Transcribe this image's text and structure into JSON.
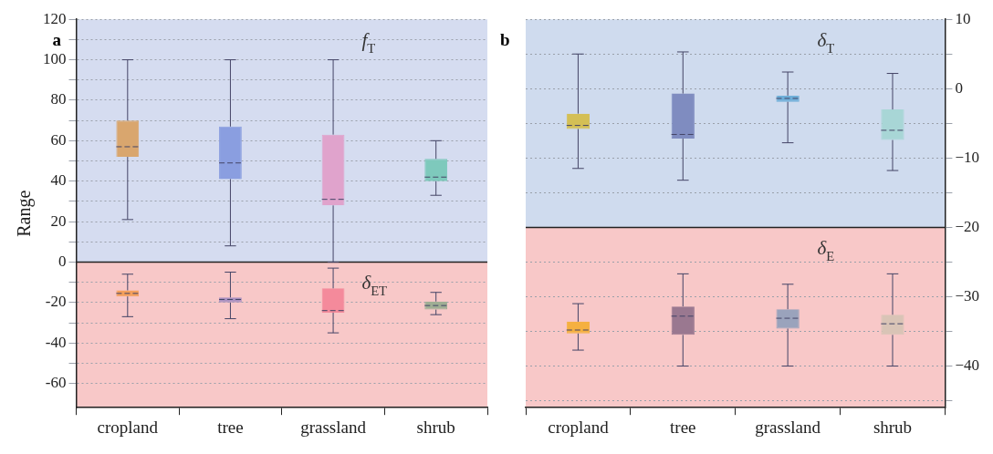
{
  "chart_data": [
    {
      "type": "box",
      "title": "a",
      "ylabel": "Range",
      "categories": [
        "cropland",
        "tree",
        "grassland",
        "shrub"
      ],
      "ylim": [
        -72,
        120
      ],
      "yticks": [
        -60,
        {
          "value": -50,
          "label": null
        },
        -40,
        {
          "value": -30,
          "label": null
        },
        -20,
        {
          "value": -10,
          "label": null
        },
        0,
        {
          "value": 10,
          "label": null
        },
        20,
        {
          "value": 30,
          "label": null
        },
        40,
        {
          "value": 50,
          "label": null
        },
        60,
        {
          "value": 70,
          "label": null
        },
        80,
        {
          "value": 90,
          "label": null
        },
        100,
        {
          "value": 110,
          "label": null
        },
        120
      ],
      "grid": "y",
      "bands": [
        {
          "axis": "y",
          "from": 0,
          "to": 120,
          "label": null,
          "color": "#d5dcf0"
        },
        {
          "axis": "y",
          "from": -72,
          "to": 0,
          "label": null,
          "color": "#f8c8c8"
        }
      ],
      "ref_lines": [
        {
          "axis": "y",
          "value": 0,
          "label": null,
          "color": "#222222"
        }
      ],
      "annotations": [
        "f$_{T}$",
        "δ$_{ET}$"
      ],
      "series": [
        {
          "colors": [
            "#d9a66e",
            "#8a9ee0",
            "#e0a3cc",
            "#7ec9bc"
          ],
          "boxes": [
            {
              "low": 21,
              "q1": 52,
              "median": 57,
              "q3": 70,
              "high": 100
            },
            {
              "low": 8,
              "q1": 41,
              "median": 49,
              "q3": 67,
              "high": 100
            },
            {
              "low": 0,
              "q1": 28,
              "median": 31,
              "q3": 63,
              "high": 100
            },
            {
              "low": 33,
              "q1": 40,
              "median": 42,
              "q3": 51,
              "high": 60
            }
          ]
        },
        {
          "colors": [
            "#f4a05c",
            "#a98fc0",
            "#f48a9b",
            "#9fae94"
          ],
          "boxes": [
            {
              "low": -27,
              "q1": -17,
              "median": -15.5,
              "q3": -14,
              "high": -6
            },
            {
              "low": -28,
              "q1": -20,
              "median": -18.5,
              "q3": -17.5,
              "high": -5
            },
            {
              "low": -35,
              "q1": -25,
              "median": -24,
              "q3": -13,
              "high": -3
            },
            {
              "low": -26,
              "q1": -23.5,
              "median": -21.5,
              "q3": -19.5,
              "high": -15
            }
          ]
        }
      ]
    },
    {
      "type": "box",
      "title": "b",
      "categories": [
        "cropland",
        "tree",
        "grassland",
        "shrub"
      ],
      "y2lim": [
        -46,
        10
      ],
      "y2ticks": [
        {
          "value": -45,
          "label": null
        },
        {
          "value": -40,
          "label": "−40"
        },
        {
          "value": -35,
          "label": null
        },
        {
          "value": -30,
          "label": "−30"
        },
        {
          "value": -25,
          "label": null
        },
        {
          "value": -20,
          "label": "−20"
        },
        {
          "value": -15,
          "label": null
        },
        {
          "value": -10,
          "label": "−10"
        },
        {
          "value": -5,
          "label": null
        },
        0,
        {
          "value": 5,
          "label": null
        },
        10
      ],
      "grid": "y",
      "bands": [
        {
          "axis": "y2",
          "from": -20,
          "to": 10,
          "label": null,
          "color": "#cfdbee"
        },
        {
          "axis": "y2",
          "from": -46,
          "to": -20,
          "label": null,
          "color": "#f8c8c8"
        }
      ],
      "ref_lines": [
        {
          "axis": "y2",
          "value": -20,
          "label": null,
          "color": "#222222"
        }
      ],
      "annotations": [
        "δ$_{T}$",
        "δ$_{E}$"
      ],
      "series": [
        {
          "axis": "y2",
          "colors": [
            "#d4bf55",
            "#7f8cc0",
            "#6eaed8",
            "#a8d6d6"
          ],
          "boxes": [
            {
              "low": -11.5,
              "q1": -5.8,
              "median": -5.3,
              "q3": -3.6,
              "high": 5
            },
            {
              "low": -13.2,
              "q1": -7.2,
              "median": -6.6,
              "q3": -0.7,
              "high": 5.3
            },
            {
              "low": -7.8,
              "q1": -1.9,
              "median": -1.4,
              "q3": -1,
              "high": 2.4
            },
            {
              "low": -11.8,
              "q1": -7.4,
              "median": -6,
              "q3": -3,
              "high": 2.2
            }
          ]
        },
        {
          "axis": "y2",
          "colors": [
            "#f5b040",
            "#9a7890",
            "#9aa3bc",
            "#d9c4b6"
          ],
          "boxes": [
            {
              "low": -37.7,
              "q1": -35.3,
              "median": -34.8,
              "q3": -33.6,
              "high": -31
            },
            {
              "low": -40,
              "q1": -35.5,
              "median": -32.8,
              "q3": -31.4,
              "high": -26.7
            },
            {
              "low": -40,
              "q1": -34.6,
              "median": -33.1,
              "q3": -31.8,
              "high": -28.2
            },
            {
              "low": -40,
              "q1": -35.5,
              "median": -33.9,
              "q3": -32.6,
              "high": -26.7
            }
          ]
        }
      ]
    }
  ]
}
